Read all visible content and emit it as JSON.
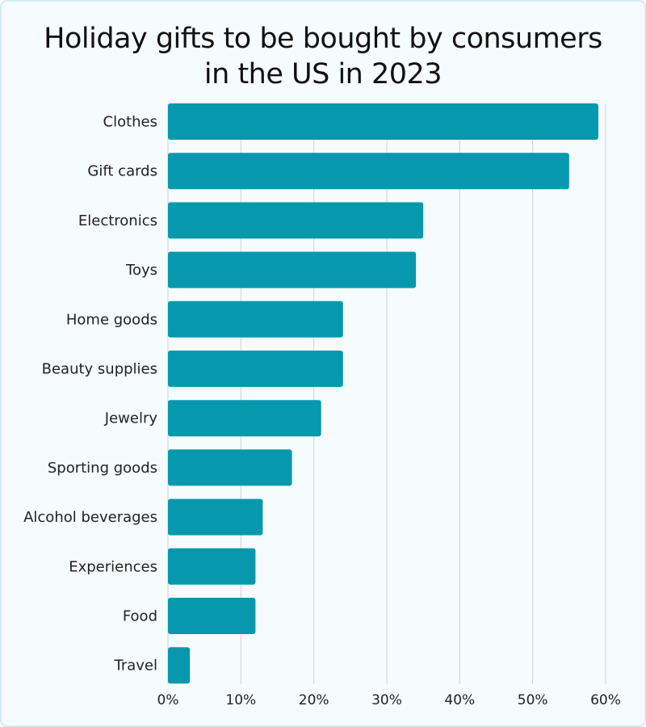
{
  "chart_data": {
    "type": "bar",
    "orientation": "horizontal",
    "title": "Holiday gifts to be bought by consumers in the US in 2023",
    "categories": [
      "Clothes",
      "Gift cards",
      "Electronics",
      "Toys",
      "Home goods",
      "Beauty supplies",
      "Jewelry",
      "Sporting goods",
      "Alcohol beverages",
      "Experiences",
      "Food",
      "Travel"
    ],
    "values": [
      59,
      55,
      35,
      34,
      24,
      24,
      21,
      17,
      13,
      12,
      12,
      3
    ],
    "unit": "%",
    "xlim": [
      0,
      60
    ],
    "xticks": [
      "0%",
      "10%",
      "20%",
      "30%",
      "40%",
      "50%",
      "60%"
    ],
    "grid": true,
    "bar_color": "#0898ae",
    "grid_color": "#c9d3d8"
  }
}
